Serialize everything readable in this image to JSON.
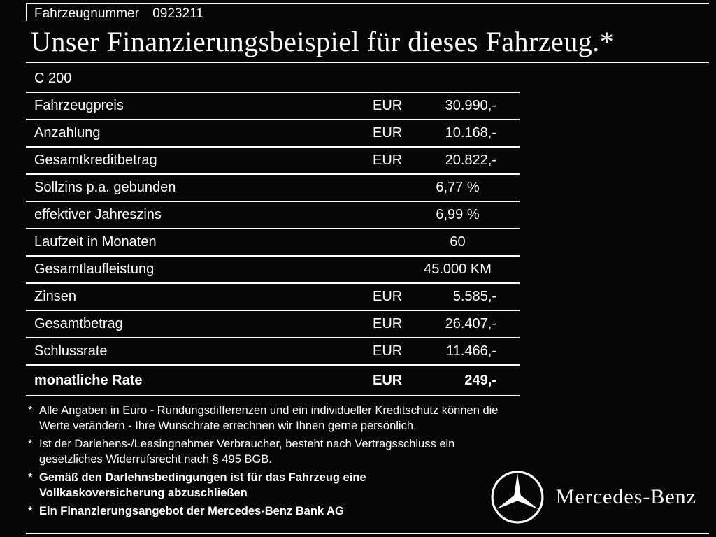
{
  "header": {
    "vehicle_number_label": "Fahrzeugnummer",
    "vehicle_number": "0923211"
  },
  "title": "Unser Finanzierungsbeispiel für dieses Fahrzeug.*",
  "model": "C 200",
  "table": {
    "rows": [
      {
        "label": "Fahrzeugpreis",
        "currency": "EUR",
        "value": "30.990,-",
        "align": "split",
        "bold": false
      },
      {
        "label": "Anzahlung",
        "currency": "EUR",
        "value": "10.168,-",
        "align": "split",
        "bold": false
      },
      {
        "label": "Gesamtkreditbetrag",
        "currency": "EUR",
        "value": "20.822,-",
        "align": "split",
        "bold": false
      },
      {
        "label": "Sollzins p.a. gebunden",
        "currency": "",
        "value": "6,77 %",
        "align": "center",
        "bold": false
      },
      {
        "label": "effektiver Jahreszins",
        "currency": "",
        "value": "6,99 %",
        "align": "center",
        "bold": false
      },
      {
        "label": "Laufzeit in Monaten",
        "currency": "",
        "value": "60",
        "align": "center",
        "bold": false
      },
      {
        "label": "Gesamtlaufleistung",
        "currency": "",
        "value": "45.000 KM",
        "align": "center",
        "bold": false
      },
      {
        "label": "Zinsen",
        "currency": "EUR",
        "value": "5.585,-",
        "align": "split",
        "bold": false
      },
      {
        "label": "Gesamtbetrag",
        "currency": "EUR",
        "value": "26.407,-",
        "align": "split",
        "bold": false
      },
      {
        "label": "Schlussrate",
        "currency": "EUR",
        "value": "11.466,-",
        "align": "split",
        "bold": false
      },
      {
        "label": "monatliche Rate",
        "currency": "EUR",
        "value": "249,-",
        "align": "split",
        "bold": true
      }
    ]
  },
  "footnotes": [
    {
      "marker": "*",
      "bold": false,
      "lines": [
        "Alle Angaben in Euro - Rundungsdifferenzen und ein individueller Kreditschutz können die",
        "Werte verändern - Ihre Wunschrate errechnen wir Ihnen gerne persönlich."
      ]
    },
    {
      "marker": "*",
      "bold": false,
      "lines": [
        "Ist der Darlehens-/Leasingnehmer Verbraucher, besteht nach Vertragsschluss ein",
        "gesetzliches Widerrufsrecht nach § 495 BGB."
      ]
    },
    {
      "marker": "*",
      "bold": true,
      "lines": [
        "Gemäß den Darlehnsbedingungen ist für das Fahrzeug eine",
        "Vollkaskoversicherung abzuschließen"
      ]
    },
    {
      "marker": "*",
      "bold": true,
      "lines": [
        "Ein Finanzierungsangebot der Mercedes-Benz Bank AG"
      ]
    }
  ],
  "brand": {
    "logo": "mercedes-star",
    "name": "Mercedes-Benz"
  },
  "colors": {
    "background": "#070707",
    "text": "#ffffff",
    "line": "#ffffff"
  }
}
